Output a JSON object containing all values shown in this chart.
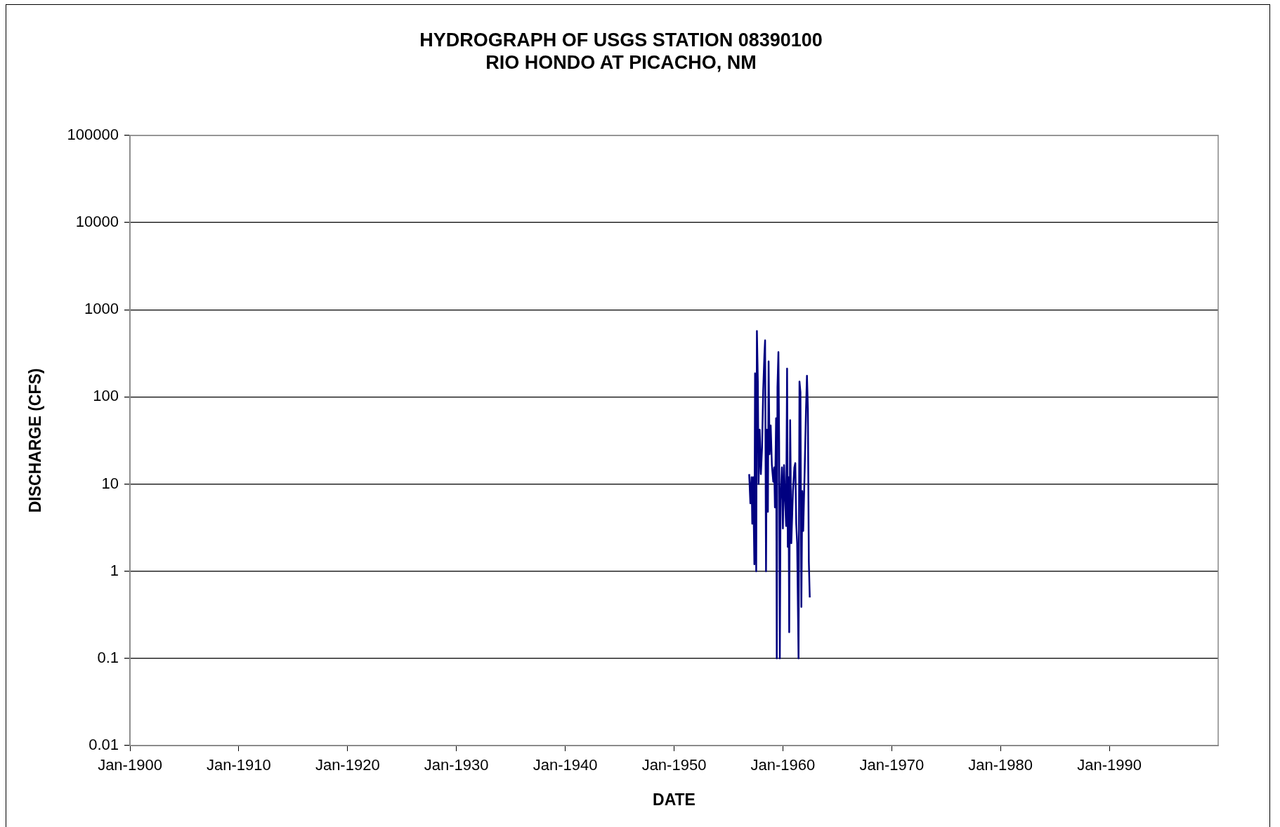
{
  "chart_data": {
    "type": "line",
    "title": "HYDROGRAPH OF USGS STATION 08390100\nRIO HONDO AT PICACHO, NM",
    "xlabel": "DATE",
    "ylabel": "DISCHARGE (CFS)",
    "x": [
      "1956-11-26",
      "1957-01-05",
      "1957-02-14",
      "1957-03-09",
      "1957-04-09",
      "1957-05-19",
      "1957-06-11",
      "1957-07-20",
      "1957-08-12",
      "1957-09-13",
      "1957-10-06",
      "1957-11-14",
      "1957-12-23",
      "1958-02-01",
      "1958-03-12",
      "1958-04-21",
      "1958-05-14",
      "1958-06-14",
      "1958-07-08",
      "1958-08-16",
      "1958-09-09",
      "1958-10-10",
      "1958-11-18",
      "1958-12-27",
      "1959-02-13",
      "1959-03-16",
      "1959-04-09",
      "1959-05-18",
      "1959-06-10",
      "1959-07-03",
      "1959-08-04",
      "1959-08-28",
      "1959-09-20",
      "1959-10-14",
      "1959-11-30",
      "1960-01-01",
      "1960-02-09",
      "1960-03-11",
      "1960-04-19",
      "1960-05-21",
      "1960-06-14",
      "1960-07-07",
      "1960-07-31",
      "1960-09-01",
      "1960-10-10",
      "1960-12-04",
      "1961-01-20",
      "1961-02-21",
      "1961-03-24",
      "1961-04-24",
      "1961-06-10",
      "1961-07-11",
      "1961-08-12",
      "1961-09-12",
      "1961-10-13",
      "1961-11-13",
      "1961-12-31",
      "1962-02-16",
      "1962-03-19",
      "1962-04-19",
      "1962-05-21",
      "1962-06-21"
    ],
    "series": [
      {
        "color": "#000080",
        "values": [
          13,
          6,
          12,
          3.5,
          12,
          1.2,
          186,
          1,
          570,
          145,
          10,
          42,
          13,
          26,
          120,
          306,
          445,
          1,
          42,
          4.8,
          255,
          22,
          47,
          16.5,
          10.6,
          15.5,
          5.4,
          57,
          0.1,
          128,
          327,
          31,
          0.1,
          6.5,
          15.5,
          3.1,
          16.5,
          7.3,
          3.3,
          211,
          1.9,
          12,
          0.2,
          54,
          2.1,
          8.3,
          15.5,
          17.4,
          3.5,
          2.1,
          0.1,
          150,
          113,
          0.39,
          8.3,
          2.9,
          13.7,
          73,
          175,
          73,
          1.3,
          0.5
        ]
      }
    ],
    "xlim": [
      "1900-01",
      "2000-01"
    ],
    "xticks": [
      {
        "value": "1900-01",
        "label": "Jan-1900"
      },
      {
        "value": "1910-01",
        "label": "Jan-1910"
      },
      {
        "value": "1920-01",
        "label": "Jan-1920"
      },
      {
        "value": "1930-01",
        "label": "Jan-1930"
      },
      {
        "value": "1940-01",
        "label": "Jan-1940"
      },
      {
        "value": "1950-01",
        "label": "Jan-1950"
      },
      {
        "value": "1960-01",
        "label": "Jan-1960"
      },
      {
        "value": "1970-01",
        "label": "Jan-1970"
      },
      {
        "value": "1980-01",
        "label": "Jan-1980"
      },
      {
        "value": "1990-01",
        "label": "Jan-1990"
      }
    ],
    "ylim": [
      0.01,
      100000
    ],
    "yticks": [
      0.01,
      0.1,
      1,
      10,
      100,
      1000,
      10000,
      100000
    ],
    "log": "y",
    "grid": "y",
    "legend": false,
    "marker": "none",
    "line_style": "solid"
  }
}
